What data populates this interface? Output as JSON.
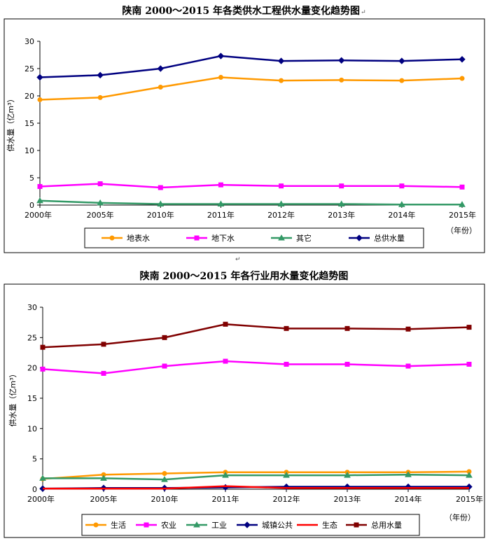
{
  "page": {
    "mark_after_title1": "↵",
    "mark_between_charts": "↵"
  },
  "chart_data": [
    {
      "type": "line",
      "title": "陕南 2000～2015 年各类供水工程供水量变化趋势图",
      "categories": [
        "2000年",
        "2005年",
        "2010年",
        "2011年",
        "2012年",
        "2013年",
        "2014年",
        "2015年"
      ],
      "x_unit_label": "（年份）",
      "ylabel": "供水量（亿m³）",
      "ylim": [
        0,
        30
      ],
      "yticks": [
        0,
        5,
        10,
        15,
        20,
        25,
        30
      ],
      "grid": false,
      "legend_position": "bottom",
      "series": [
        {
          "name": "地表水",
          "color": "#FF9900",
          "marker": "circle",
          "values": [
            19.3,
            19.7,
            21.6,
            23.4,
            22.8,
            22.9,
            22.8,
            23.2
          ]
        },
        {
          "name": "地下水",
          "color": "#FF00FF",
          "marker": "square",
          "values": [
            3.4,
            3.9,
            3.2,
            3.7,
            3.5,
            3.5,
            3.5,
            3.3
          ]
        },
        {
          "name": "其它",
          "color": "#339966",
          "marker": "triangle",
          "values": [
            0.8,
            0.4,
            0.2,
            0.2,
            0.2,
            0.2,
            0.1,
            0.1
          ]
        },
        {
          "name": "总供水量",
          "color": "#000080",
          "marker": "diamond",
          "values": [
            23.4,
            23.8,
            25.0,
            27.3,
            26.4,
            26.5,
            26.4,
            26.7
          ]
        }
      ]
    },
    {
      "type": "line",
      "title": "陕南 2000～2015 年各行业用水量变化趋势图",
      "categories": [
        "2000年",
        "2005年",
        "2010年",
        "2011年",
        "2012年",
        "2013年",
        "2014年",
        "2015年"
      ],
      "x_unit_label": "（年份）",
      "ylabel": "供水量（亿m³）",
      "ylim": [
        0,
        30
      ],
      "yticks": [
        0,
        5,
        10,
        15,
        20,
        25,
        30
      ],
      "grid": false,
      "legend_position": "bottom",
      "series": [
        {
          "name": "生活",
          "color": "#FF9900",
          "marker": "circle",
          "values": [
            1.7,
            2.4,
            2.6,
            2.8,
            2.8,
            2.8,
            2.8,
            2.9
          ]
        },
        {
          "name": "农业",
          "color": "#FF00FF",
          "marker": "square",
          "values": [
            19.8,
            19.1,
            20.3,
            21.1,
            20.6,
            20.6,
            20.3,
            20.6
          ]
        },
        {
          "name": "工业",
          "color": "#339966",
          "marker": "triangle",
          "values": [
            1.8,
            1.8,
            1.6,
            2.3,
            2.3,
            2.3,
            2.4,
            2.3
          ]
        },
        {
          "name": "城镇公共",
          "color": "#000080",
          "marker": "diamond",
          "values": [
            0.1,
            0.2,
            0.2,
            0.3,
            0.4,
            0.4,
            0.4,
            0.4
          ]
        },
        {
          "name": "生态",
          "color": "#FF0000",
          "marker": "none",
          "values": [
            0.1,
            0.1,
            0.1,
            0.5,
            0.2,
            0.2,
            0.2,
            0.2
          ]
        },
        {
          "name": "总用水量",
          "color": "#800000",
          "marker": "square",
          "values": [
            23.4,
            23.9,
            25.0,
            27.2,
            26.5,
            26.5,
            26.4,
            26.7
          ]
        }
      ]
    }
  ]
}
